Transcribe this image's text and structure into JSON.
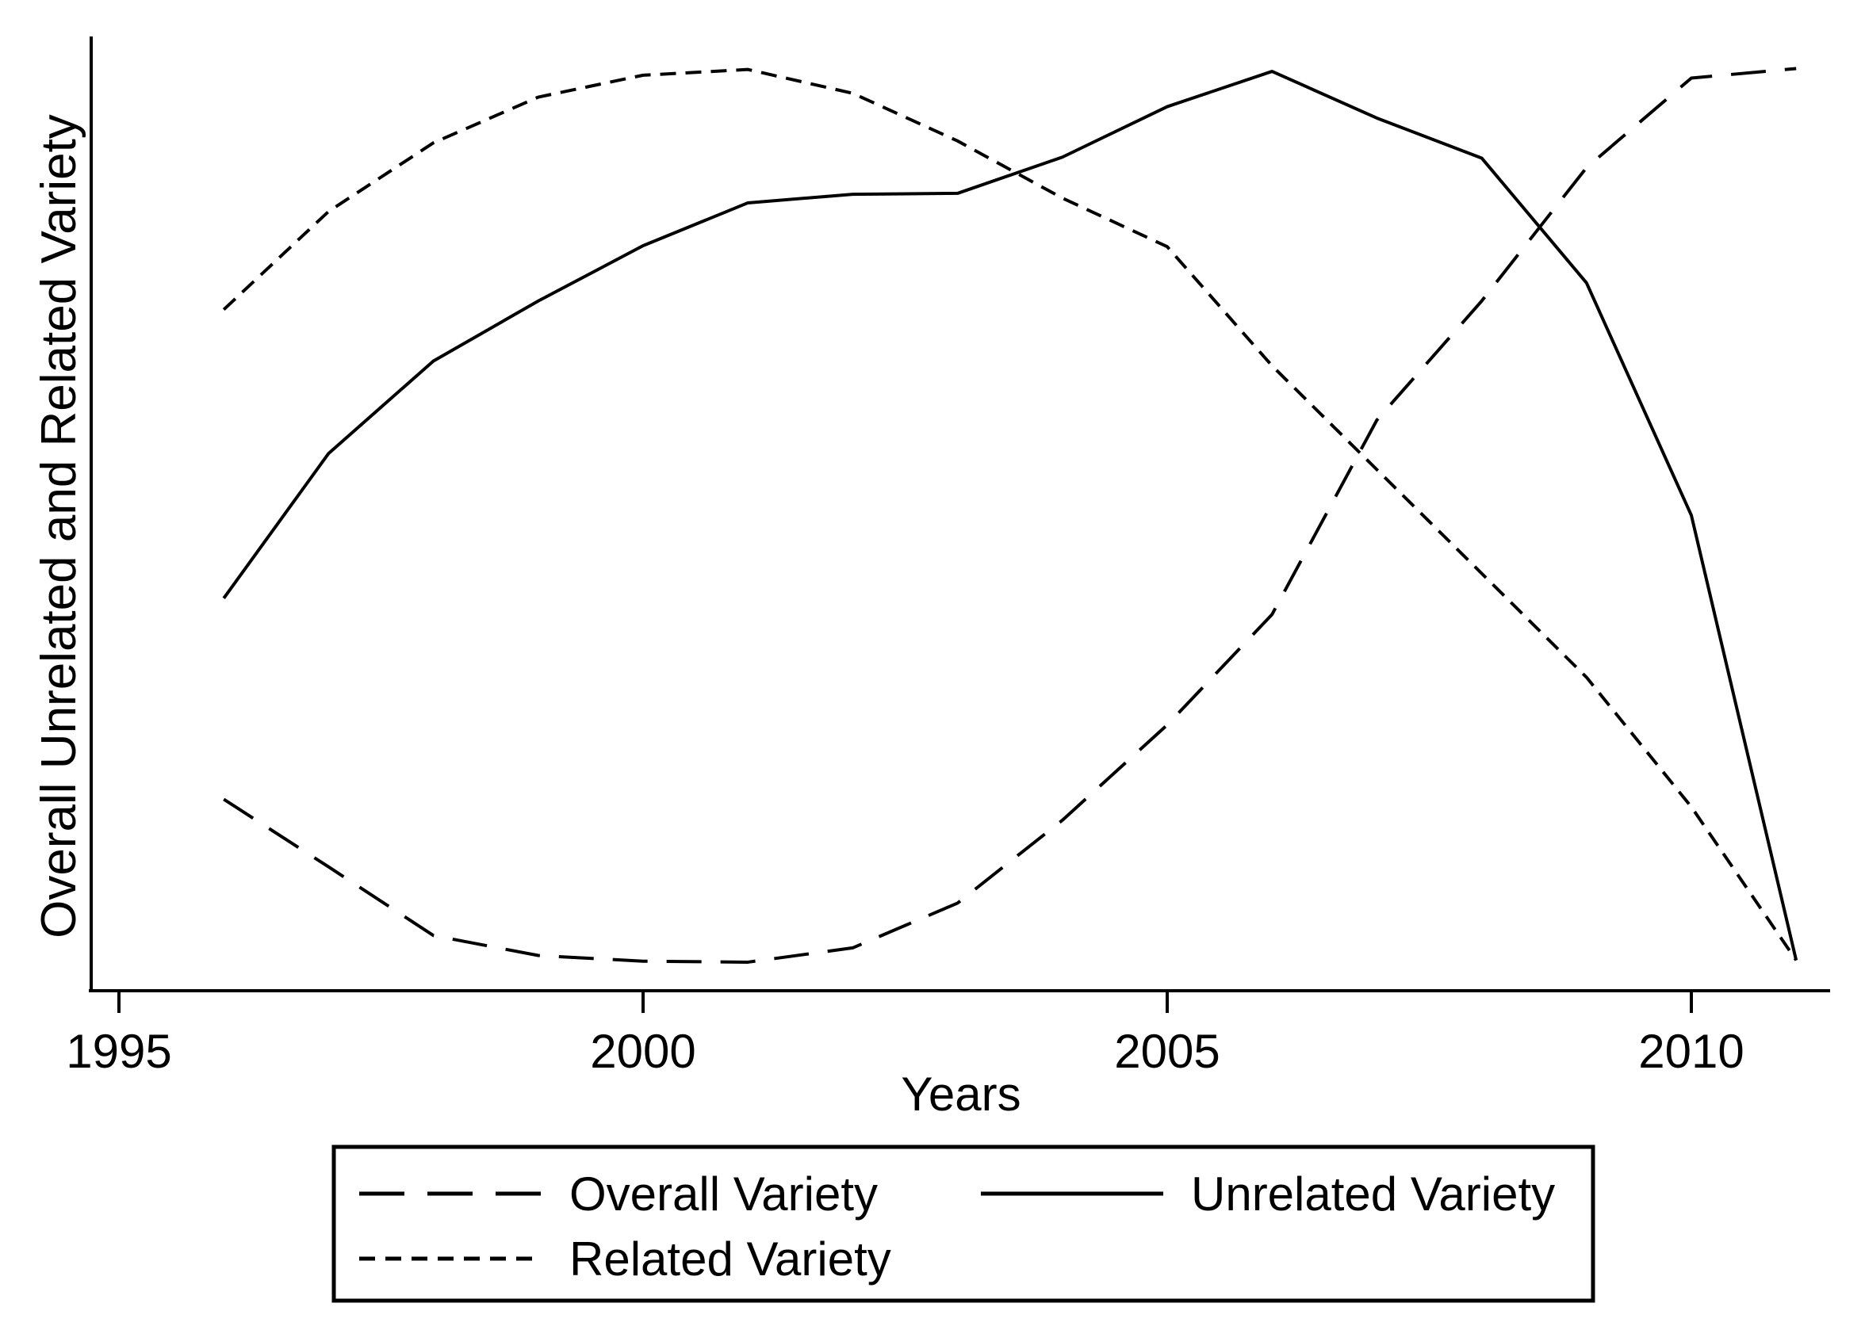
{
  "colors": {
    "line": "#000000",
    "text": "#000000",
    "background": "#ffffff"
  },
  "chart_data": {
    "type": "line",
    "title": "",
    "xlabel": "Years",
    "ylabel": "Overall Unrelated and Related Variety",
    "x_ticks": [
      1995,
      2000,
      2005,
      2010
    ],
    "x_range": [
      1995,
      2011.3
    ],
    "ylim": [
      0,
      100
    ],
    "y_axis_note": "no y tick marks or numeric labels shown; index scale 0-100 estimated from pixel positions",
    "grid": "off",
    "legend_position": "bottom-box",
    "x": [
      1996,
      1997,
      1998,
      1999,
      2000,
      2001,
      2002,
      2003,
      2004,
      2005,
      2006,
      2007,
      2008,
      2009,
      2010,
      2011
    ],
    "series": [
      {
        "name": "Overall Variety",
        "line_style": "long-dash",
        "values": [
          20.1,
          13.0,
          5.8,
          3.7,
          3.1,
          3.0,
          4.5,
          9.2,
          17.9,
          27.9,
          39.5,
          59.9,
          72.4,
          86.4,
          95.8,
          96.8
        ]
      },
      {
        "name": "Unrelated Variety",
        "line_style": "solid",
        "values": [
          41.2,
          56.4,
          66.1,
          72.4,
          78.2,
          82.7,
          83.6,
          83.7,
          87.5,
          92.8,
          96.5,
          91.6,
          87.4,
          74.3,
          49.9,
          3.2
        ]
      },
      {
        "name": "Related Variety",
        "line_style": "short-dash",
        "values": [
          71.5,
          81.8,
          89.0,
          93.8,
          96.1,
          96.7,
          94.2,
          89.2,
          83.2,
          78.1,
          65.6,
          54.7,
          43.8,
          32.9,
          19.3,
          3.2
        ]
      }
    ]
  }
}
